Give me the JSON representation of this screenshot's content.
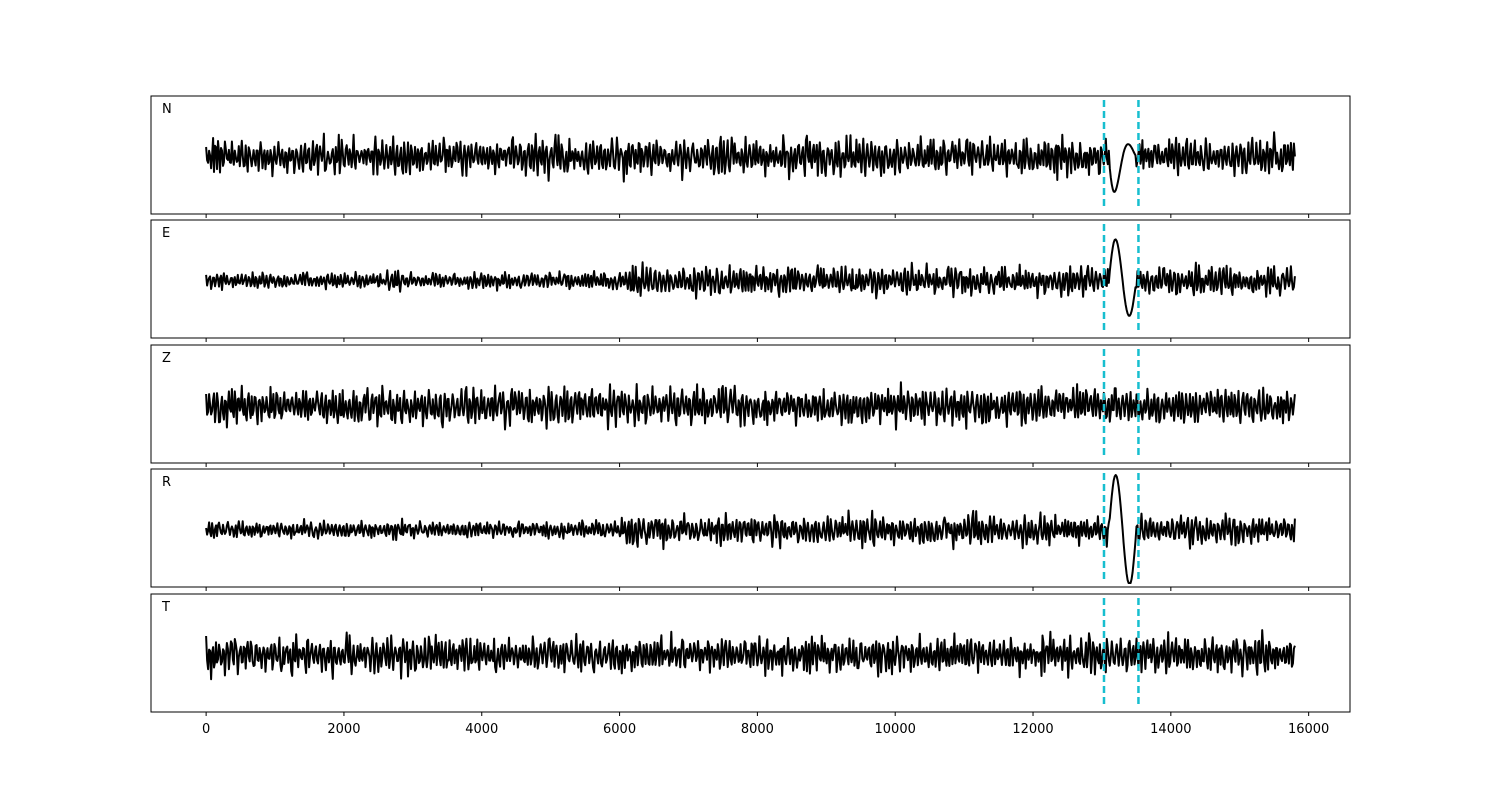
{
  "chart_data": {
    "type": "line",
    "panels": [
      {
        "label": "N",
        "amp_seed": 11,
        "onset_shape": "down-up"
      },
      {
        "label": "E",
        "amp_seed": 23,
        "onset_shape": "up-down"
      },
      {
        "label": "Z",
        "amp_seed": 37,
        "onset_shape": "none"
      },
      {
        "label": "R",
        "amp_seed": 41,
        "onset_shape": "up-down-strong"
      },
      {
        "label": "T",
        "amp_seed": 53,
        "onset_shape": "none"
      }
    ],
    "x_range": [
      0,
      15800
    ],
    "xlim": [
      -800,
      16600
    ],
    "x_ticks": [
      0,
      2000,
      4000,
      6000,
      8000,
      10000,
      12000,
      14000,
      16000
    ],
    "x_tick_labels": [
      "0",
      "2000",
      "4000",
      "6000",
      "8000",
      "10000",
      "12000",
      "14000",
      "16000"
    ],
    "pick_lines": [
      13030,
      13530
    ],
    "colors": {
      "trace": "#000000",
      "pick_line": "#17becf",
      "axes": "#000000",
      "background": "#ffffff"
    },
    "legend": "none",
    "grid": false
  }
}
